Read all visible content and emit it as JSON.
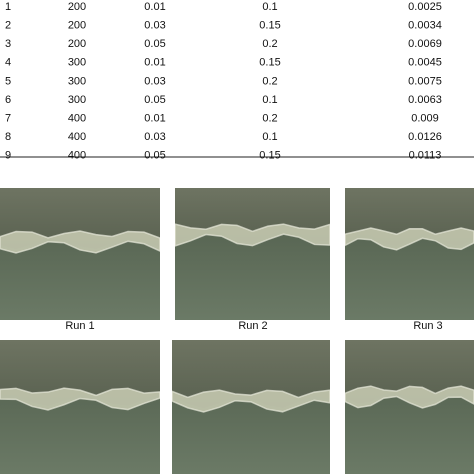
{
  "table": {
    "rows": [
      [
        1,
        200,
        0.01,
        0.1,
        0.0025
      ],
      [
        2,
        200,
        0.03,
        0.15,
        0.0034
      ],
      [
        3,
        200,
        0.05,
        0.2,
        0.0069
      ],
      [
        4,
        300,
        0.01,
        0.15,
        0.0045
      ],
      [
        5,
        300,
        0.03,
        0.2,
        0.0075
      ],
      [
        6,
        300,
        0.05,
        0.1,
        0.0063
      ],
      [
        7,
        400,
        0.01,
        0.2,
        0.009
      ],
      [
        8,
        400,
        0.03,
        0.1,
        0.0126
      ],
      [
        9,
        400,
        0.05,
        0.15,
        0.0113
      ]
    ]
  },
  "figure": {
    "captions": [
      "Run 1",
      "Run 2",
      "Run 3"
    ]
  }
}
